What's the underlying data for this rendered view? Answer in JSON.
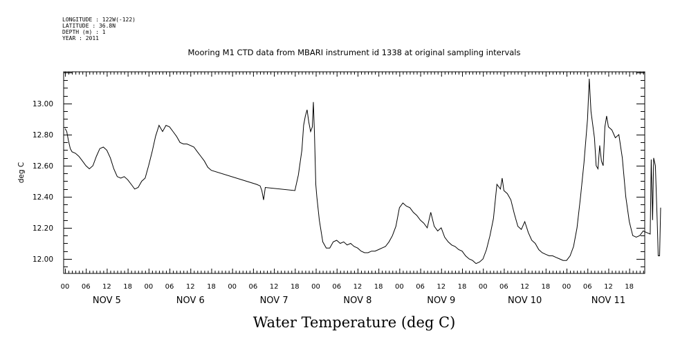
{
  "meta": {
    "longitude": "LONGITUDE : 122W(-122)",
    "latitude": "LATITUDE : 36.8N",
    "depth": "DEPTH (m) : 1",
    "year": "YEAR : 2011"
  },
  "chart_data": {
    "type": "line",
    "title": "Mooring M1 CTD data from MBARI instrument id 1338 at original sampling intervals",
    "xlabel": "Water Temperature (deg C)",
    "ylabel": "deg C",
    "ylim": [
      11.9,
      13.22
    ],
    "yticks": [
      "12.00",
      "12.20",
      "12.40",
      "12.60",
      "12.80",
      "13.00"
    ],
    "x_unit": "hours since NOV 5 00:00",
    "xlim": [
      0,
      166
    ],
    "hour_ticks": [
      "00",
      "06",
      "12",
      "18",
      "00",
      "06",
      "12",
      "18",
      "00",
      "06",
      "12",
      "18",
      "00",
      "06",
      "12",
      "18",
      "00",
      "06",
      "12",
      "18",
      "00",
      "06",
      "12",
      "18",
      "00",
      "06",
      "12",
      "18"
    ],
    "day_labels": [
      "NOV  5",
      "NOV  6",
      "NOV  7",
      "NOV  8",
      "NOV  9",
      "NOV 10",
      "NOV 11"
    ],
    "grid": false,
    "series": [
      {
        "values": [
          [
            0,
            12.84
          ],
          [
            0.5,
            12.82
          ],
          [
            1,
            12.76
          ],
          [
            1.5,
            12.71
          ],
          [
            2,
            12.69
          ],
          [
            3,
            12.68
          ],
          [
            4,
            12.66
          ],
          [
            5,
            12.63
          ],
          [
            6,
            12.6
          ],
          [
            7,
            12.58
          ],
          [
            8,
            12.6
          ],
          [
            9,
            12.66
          ],
          [
            10,
            12.71
          ],
          [
            11,
            12.72
          ],
          [
            12,
            12.7
          ],
          [
            13,
            12.65
          ],
          [
            14,
            12.58
          ],
          [
            15,
            12.53
          ],
          [
            16,
            12.52
          ],
          [
            17,
            12.53
          ],
          [
            18,
            12.51
          ],
          [
            19,
            12.48
          ],
          [
            20,
            12.45
          ],
          [
            21,
            12.46
          ],
          [
            22,
            12.5
          ],
          [
            23,
            12.52
          ],
          [
            24,
            12.6
          ],
          [
            25,
            12.69
          ],
          [
            26,
            12.79
          ],
          [
            27,
            12.86
          ],
          [
            28,
            12.82
          ],
          [
            29,
            12.86
          ],
          [
            30,
            12.85
          ],
          [
            31,
            12.82
          ],
          [
            32,
            12.79
          ],
          [
            33,
            12.75
          ],
          [
            34,
            12.74
          ],
          [
            35,
            12.74
          ],
          [
            36,
            12.73
          ],
          [
            37,
            12.72
          ],
          [
            38,
            12.69
          ],
          [
            39,
            12.66
          ],
          [
            40,
            12.63
          ],
          [
            41,
            12.59
          ],
          [
            42,
            12.57
          ],
          [
            55,
            12.48
          ],
          [
            56,
            12.47
          ],
          [
            56.5,
            12.44
          ],
          [
            57,
            12.38
          ],
          [
            57.5,
            12.46
          ],
          [
            66,
            12.44
          ],
          [
            67,
            12.54
          ],
          [
            68,
            12.7
          ],
          [
            68.5,
            12.86
          ],
          [
            69,
            12.92
          ],
          [
            69.5,
            12.96
          ],
          [
            70,
            12.88
          ],
          [
            70.5,
            12.82
          ],
          [
            71,
            12.85
          ],
          [
            71.3,
            13.01
          ],
          [
            71.6,
            12.82
          ],
          [
            72,
            12.48
          ],
          [
            72.3,
            12.4
          ],
          [
            73,
            12.25
          ],
          [
            74,
            12.11
          ],
          [
            75,
            12.07
          ],
          [
            76,
            12.07
          ],
          [
            77,
            12.11
          ],
          [
            78,
            12.12
          ],
          [
            79,
            12.1
          ],
          [
            80,
            12.11
          ],
          [
            81,
            12.09
          ],
          [
            82,
            12.1
          ],
          [
            83,
            12.08
          ],
          [
            84,
            12.07
          ],
          [
            85,
            12.05
          ],
          [
            86,
            12.04
          ],
          [
            87,
            12.04
          ],
          [
            88,
            12.05
          ],
          [
            89,
            12.05
          ],
          [
            90,
            12.06
          ],
          [
            91,
            12.07
          ],
          [
            92,
            12.08
          ],
          [
            93,
            12.11
          ],
          [
            94,
            12.15
          ],
          [
            95,
            12.21
          ],
          [
            96,
            12.33
          ],
          [
            97,
            12.36
          ],
          [
            98,
            12.34
          ],
          [
            99,
            12.33
          ],
          [
            100,
            12.3
          ],
          [
            101,
            12.28
          ],
          [
            102,
            12.25
          ],
          [
            103,
            12.23
          ],
          [
            104,
            12.2
          ],
          [
            105,
            12.3
          ],
          [
            106,
            12.21
          ],
          [
            107,
            12.18
          ],
          [
            108,
            12.2
          ],
          [
            109,
            12.14
          ],
          [
            110,
            12.11
          ],
          [
            111,
            12.09
          ],
          [
            112,
            12.08
          ],
          [
            113,
            12.06
          ],
          [
            114,
            12.05
          ],
          [
            115,
            12.02
          ],
          [
            116,
            12.0
          ],
          [
            117,
            11.99
          ],
          [
            118,
            11.97
          ],
          [
            119,
            11.98
          ],
          [
            120,
            12.0
          ],
          [
            121,
            12.06
          ],
          [
            122,
            12.15
          ],
          [
            123,
            12.26
          ],
          [
            124,
            12.48
          ],
          [
            125,
            12.45
          ],
          [
            125.5,
            12.52
          ],
          [
            126,
            12.44
          ],
          [
            127,
            12.42
          ],
          [
            128,
            12.38
          ],
          [
            129,
            12.29
          ],
          [
            130,
            12.21
          ],
          [
            131,
            12.19
          ],
          [
            132,
            12.24
          ],
          [
            133,
            12.17
          ],
          [
            134,
            12.12
          ],
          [
            135,
            12.1
          ],
          [
            136,
            12.06
          ],
          [
            137,
            12.04
          ],
          [
            138,
            12.03
          ],
          [
            139,
            12.02
          ],
          [
            140,
            12.02
          ],
          [
            141,
            12.01
          ],
          [
            142,
            12.0
          ],
          [
            143,
            11.99
          ],
          [
            144,
            11.99
          ],
          [
            145,
            12.02
          ],
          [
            146,
            12.08
          ],
          [
            147,
            12.2
          ],
          [
            148,
            12.4
          ],
          [
            149,
            12.62
          ],
          [
            150,
            12.9
          ],
          [
            150.5,
            13.16
          ],
          [
            151,
            12.95
          ],
          [
            152,
            12.78
          ],
          [
            152.5,
            12.6
          ],
          [
            153,
            12.58
          ],
          [
            153.5,
            12.73
          ],
          [
            154,
            12.63
          ],
          [
            154.5,
            12.6
          ],
          [
            155,
            12.85
          ],
          [
            155.5,
            12.92
          ],
          [
            156,
            12.85
          ],
          [
            157,
            12.83
          ],
          [
            158,
            12.78
          ],
          [
            159,
            12.8
          ],
          [
            160,
            12.65
          ],
          [
            161,
            12.4
          ],
          [
            162,
            12.24
          ],
          [
            163,
            12.15
          ],
          [
            164,
            12.14
          ],
          [
            165,
            12.15
          ],
          [
            166,
            12.18
          ],
          [
            167,
            12.17
          ],
          [
            168,
            12.16
          ],
          [
            168.3,
            12.64
          ],
          [
            168.7,
            12.25
          ],
          [
            169,
            12.65
          ],
          [
            169.5,
            12.6
          ],
          [
            170,
            12.25
          ],
          [
            170.3,
            12.02
          ],
          [
            170.7,
            12.02
          ],
          [
            171,
            12.33
          ]
        ]
      }
    ]
  }
}
